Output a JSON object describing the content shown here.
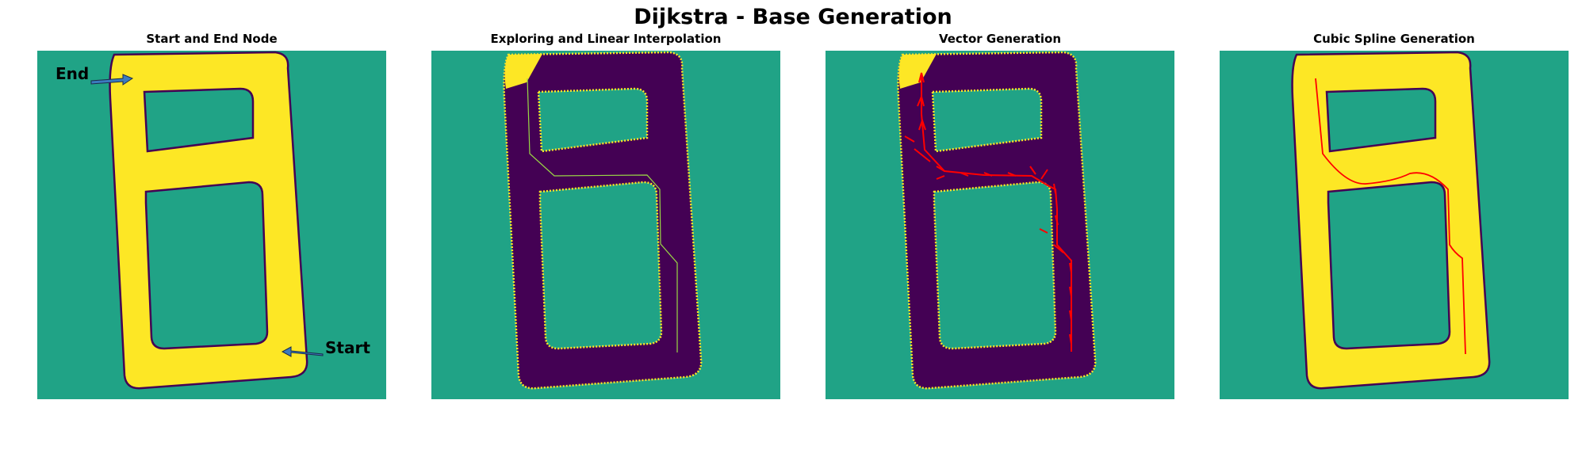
{
  "title": "Dijkstra - Base Generation",
  "panels": [
    {
      "title": "Start and End Node"
    },
    {
      "title": "Exploring and Linear Interpolation"
    },
    {
      "title": "Vector Generation"
    },
    {
      "title": "Cubic Spline Generation"
    }
  ],
  "annotations": {
    "end_label": "End",
    "start_label": "Start"
  },
  "colors": {
    "background": "#20a386",
    "track": "#fde725",
    "explored": "#440154",
    "path_linear": "#9ad945",
    "path_vector": "#ff0000",
    "spline": "#ff0000",
    "arrow": "#3b7bbf"
  }
}
